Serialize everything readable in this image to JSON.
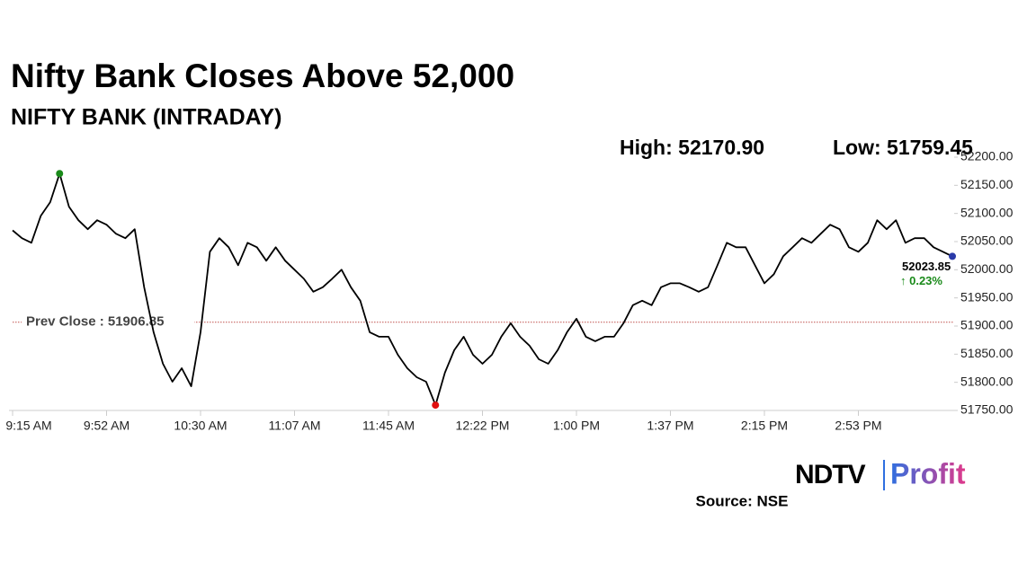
{
  "chart_data": {
    "type": "line",
    "title": "Nifty Bank Closes Above 52,000",
    "subtitle": "NIFTY BANK (INTRADAY)",
    "high_label": "High: 52170.90",
    "low_label": "Low: 51759.45",
    "prev_close": {
      "value": 51906.85,
      "label": "Prev Close : 51906.85"
    },
    "change_label": "↑ 0.23%",
    "source": "Source: NSE",
    "logo": [
      "NDTV",
      "Profit"
    ],
    "color": "#000000",
    "high_color": "#1a8a1a",
    "low_color": "#e01010",
    "last_color": "#2a3aa8",
    "prev_close_color": "#c0504d",
    "change_color": "#1a8a1a",
    "categories": [
      "9:15 AM",
      null,
      null,
      null,
      null,
      null,
      null,
      null,
      null,
      null,
      "9:52 AM",
      null,
      null,
      null,
      null,
      null,
      null,
      null,
      null,
      null,
      "10:30 AM",
      null,
      null,
      null,
      null,
      null,
      null,
      null,
      null,
      null,
      "11:07 AM",
      null,
      null,
      null,
      null,
      null,
      null,
      null,
      null,
      null,
      "11:45 AM",
      null,
      null,
      null,
      null,
      null,
      null,
      null,
      null,
      null,
      "12:22 PM",
      null,
      null,
      null,
      null,
      null,
      null,
      null,
      null,
      null,
      "1:00 PM",
      null,
      null,
      null,
      null,
      null,
      null,
      null,
      null,
      null,
      "1:37 PM",
      null,
      null,
      null,
      null,
      null,
      null,
      null,
      null,
      null,
      "2:15 PM",
      null,
      null,
      null,
      null,
      null,
      null,
      null,
      null,
      null,
      "2:53 PM",
      null,
      null,
      null,
      null,
      null,
      null,
      null,
      null,
      null,
      null
    ],
    "values": [
      52070,
      52056,
      52048,
      52096,
      52120,
      52170.9,
      52112,
      52088,
      52072,
      52088,
      52080,
      52064,
      52056,
      52072,
      51969,
      51889,
      51833,
      51801,
      51825,
      51793,
      51889,
      52032,
      52056,
      52040,
      52008,
      52048,
      52040,
      52016,
      52040,
      52016,
      52000,
      51984,
      51961,
      51969,
      51984,
      52000,
      51969,
      51945,
      51889,
      51881,
      51881,
      51849,
      51825,
      51809,
      51801,
      51759.45,
      51817,
      51857,
      51881,
      51849,
      51833,
      51849,
      51881,
      51905,
      51881,
      51865,
      51841,
      51833,
      51857,
      51889,
      51913,
      51881,
      51873,
      51881,
      51881,
      51905,
      51937,
      51945,
      51937,
      51969,
      51976,
      51976,
      51969,
      51961,
      51969,
      52008,
      52048,
      52040,
      52040,
      52008,
      51976,
      51992,
      52024,
      52040,
      52056,
      52048,
      52064,
      52080,
      52072,
      52040,
      52032,
      52048,
      52088,
      52072,
      52088,
      52048,
      52056,
      52056,
      52040,
      52032,
      52023.85
    ],
    "ylim": [
      51750,
      52200
    ],
    "yticks": [
      {
        "value": 51750,
        "label": "51750.00"
      },
      {
        "value": 51800,
        "label": "51800.00"
      },
      {
        "value": 51850,
        "label": "51850.00"
      },
      {
        "value": 51900,
        "label": "51900.00"
      },
      {
        "value": 51950,
        "label": "51950.00"
      },
      {
        "value": 52000,
        "label": "52000.00"
      },
      {
        "value": 52050,
        "label": "52050.00"
      },
      {
        "value": 52100,
        "label": "52100.00"
      },
      {
        "value": 52150,
        "label": "52150.00"
      },
      {
        "value": 52200,
        "label": "52200.00"
      }
    ]
  }
}
